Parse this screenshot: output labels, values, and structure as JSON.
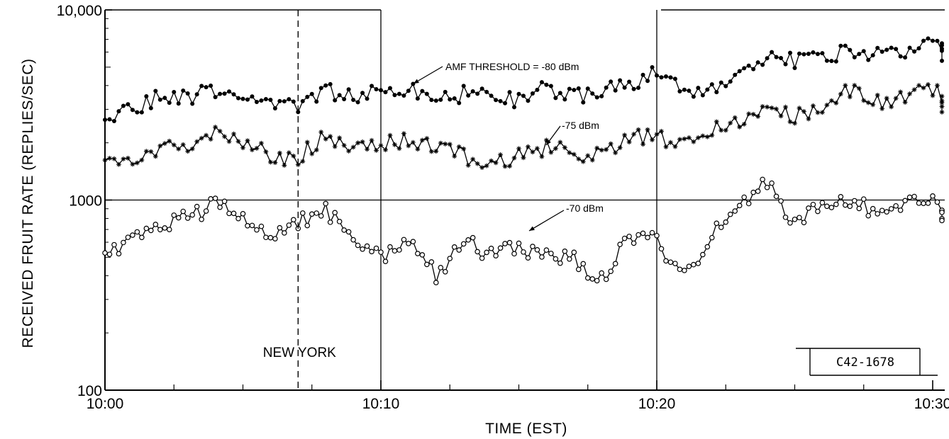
{
  "chart_data": {
    "type": "line",
    "title": "",
    "xlabel": "TIME (EST)",
    "ylabel": "RECEIVED FRUIT RATE (REPLIES/SEC)",
    "yscale": "log",
    "ylim": [
      100,
      10000
    ],
    "xlim": [
      "10:00",
      "10:31"
    ],
    "x_ticks": [
      "10:00",
      "10:10",
      "10:20",
      "10:30"
    ],
    "y_ticks": [
      "100",
      "1000",
      "10,000"
    ],
    "grid": "major only",
    "series": [
      {
        "name": "AMF THRESHOLD = -80 dBm",
        "marker": "filled-circle",
        "x": [
          "10:00",
          "10:01",
          "10:02",
          "10:03",
          "10:04",
          "10:05",
          "10:06",
          "10:07",
          "10:08",
          "10:09",
          "10:10",
          "10:11",
          "10:12",
          "10:13",
          "10:14",
          "10:15",
          "10:16",
          "10:17",
          "10:18",
          "10:19",
          "10:20",
          "10:21",
          "10:22",
          "10:23",
          "10:24",
          "10:25",
          "10:26",
          "10:27",
          "10:28",
          "10:29",
          "10:30",
          "10:31"
        ],
        "values": [
          2800,
          3000,
          3500,
          3400,
          3800,
          3200,
          3300,
          3000,
          3700,
          3600,
          3700,
          3900,
          3300,
          3600,
          3700,
          3300,
          3900,
          3500,
          3700,
          4000,
          4700,
          3800,
          3900,
          4300,
          5800,
          5400,
          5500,
          6300,
          5800,
          6200,
          7200,
          5400
        ]
      },
      {
        "name": "-75 dBm",
        "marker": "asterisk",
        "x": [
          "10:00",
          "10:01",
          "10:02",
          "10:03",
          "10:04",
          "10:05",
          "10:06",
          "10:07",
          "10:08",
          "10:09",
          "10:10",
          "10:11",
          "10:12",
          "10:13",
          "10:14",
          "10:15",
          "10:16",
          "10:17",
          "10:18",
          "10:19",
          "10:20",
          "10:21",
          "10:22",
          "10:23",
          "10:24",
          "10:25",
          "10:26",
          "10:27",
          "10:28",
          "10:29",
          "10:30",
          "10:31"
        ],
        "values": [
          1650,
          1600,
          1900,
          2000,
          2300,
          2000,
          1700,
          1650,
          2200,
          1900,
          2000,
          2100,
          1850,
          1700,
          1500,
          1700,
          1900,
          1800,
          1700,
          2200,
          2100,
          2100,
          2300,
          2500,
          3000,
          2700,
          3000,
          3800,
          3300,
          3500,
          3800,
          2900
        ]
      },
      {
        "name": "-70 dBm",
        "marker": "open-circle",
        "x": [
          "10:00",
          "10:01",
          "10:02",
          "10:03",
          "10:04",
          "10:05",
          "10:06",
          "10:07",
          "10:08",
          "10:09",
          "10:10",
          "10:11",
          "10:12",
          "10:13",
          "10:14",
          "10:15",
          "10:16",
          "10:17",
          "10:18",
          "10:19",
          "10:20",
          "10:21",
          "10:22",
          "10:23",
          "10:24",
          "10:25",
          "10:26",
          "10:27",
          "10:28",
          "10:29",
          "10:30",
          "10:31"
        ],
        "values": [
          540,
          600,
          750,
          800,
          950,
          850,
          620,
          750,
          900,
          600,
          500,
          620,
          400,
          600,
          520,
          560,
          520,
          480,
          380,
          650,
          600,
          400,
          650,
          900,
          1250,
          750,
          1000,
          1000,
          850,
          1000,
          1050,
          780
        ]
      }
    ],
    "vertical_markers": [
      {
        "x": "10:07",
        "style": "dashed",
        "label": "NEW YORK"
      }
    ],
    "annotations": [
      {
        "text": "AMF THRESHOLD = -80 dBm",
        "target_series": "AMF THRESHOLD = -80 dBm"
      },
      {
        "text": "-75 dBm",
        "target_series": "-75 dBm"
      },
      {
        "text": "-70 dBm",
        "target_series": "-70 dBm"
      }
    ],
    "figure_id": "C42-1678"
  },
  "colors": {
    "ink": "#000000",
    "background": "#ffffff"
  }
}
